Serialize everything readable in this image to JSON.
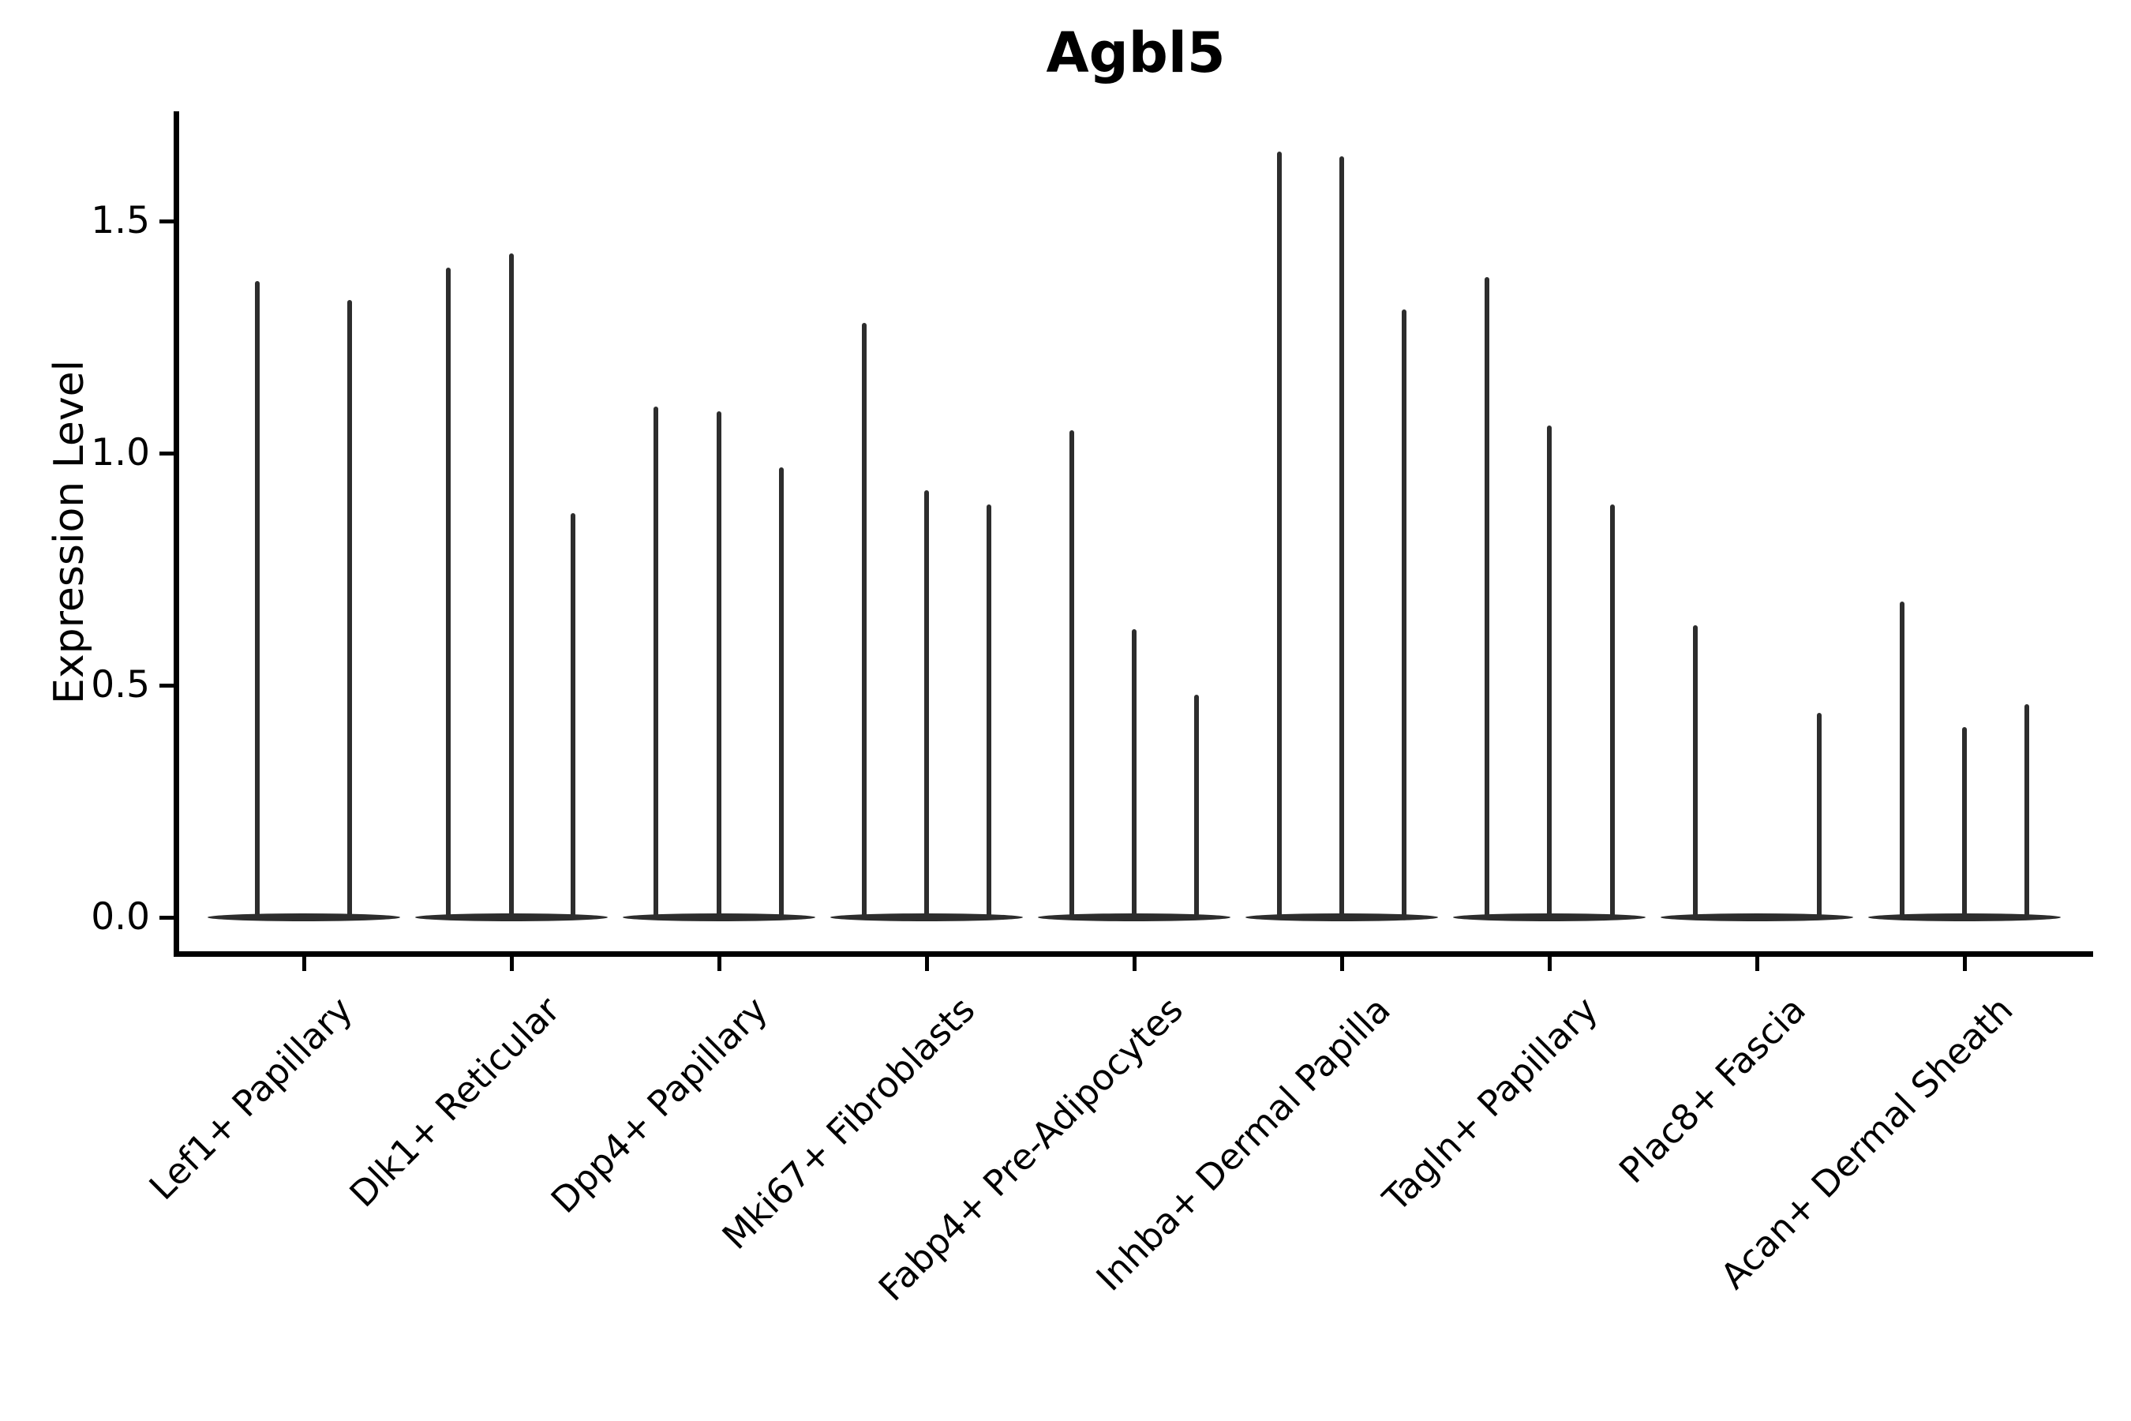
{
  "colors": {
    "violin": "#2d2d2d",
    "axis": "#000000",
    "background": "#ffffff"
  },
  "chart_data": {
    "type": "violin",
    "title": "Agbl5",
    "ylabel": "Expression Level",
    "xlabel": "",
    "legend": "none",
    "grid": false,
    "ylim": [
      0,
      1.74
    ],
    "y_ticks": [
      {
        "label": "1.5",
        "value": 1.5
      },
      {
        "label": "1.0",
        "value": 1.0
      },
      {
        "label": "0.5",
        "value": 0.5
      },
      {
        "label": "0.0",
        "value": 0.0
      }
    ],
    "categories": [
      "Lef1+ Papillary",
      "Dlk1+ Reticular",
      "Dpp4+ Papillary",
      "Mki67+ Fibroblasts",
      "Fabp4+ Pre-Adipocytes",
      "Inhba+ Dermal Papilla",
      "Tagln+ Papillary",
      "Plac8+ Fascia",
      "Acan+ Dermal Sheath"
    ],
    "groups": [
      {
        "category": "Lef1+ Papillary",
        "spikes": [
          {
            "dx": -59,
            "value": 1.37
          },
          {
            "dx": 58,
            "value": 1.33
          }
        ]
      },
      {
        "category": "Dlk1+ Reticular",
        "spikes": [
          {
            "dx": -80,
            "value": 1.4
          },
          {
            "dx": 0,
            "value": 1.43
          },
          {
            "dx": 78,
            "value": 0.87
          }
        ]
      },
      {
        "category": "Dpp4+ Papillary",
        "spikes": [
          {
            "dx": -80,
            "value": 1.1
          },
          {
            "dx": 0,
            "value": 1.09
          },
          {
            "dx": 79,
            "value": 0.97
          }
        ]
      },
      {
        "category": "Mki67+ Fibroblasts",
        "spikes": [
          {
            "dx": -79,
            "value": 1.28
          },
          {
            "dx": 0,
            "value": 0.92
          },
          {
            "dx": 79,
            "value": 0.89
          }
        ]
      },
      {
        "category": "Fabp4+ Pre-Adipocytes",
        "spikes": [
          {
            "dx": -79,
            "value": 1.05
          },
          {
            "dx": 0,
            "value": 0.62
          },
          {
            "dx": 79,
            "value": 0.48
          }
        ]
      },
      {
        "category": "Inhba+ Dermal Papilla",
        "spikes": [
          {
            "dx": -79,
            "value": 1.65
          },
          {
            "dx": 0,
            "value": 1.64
          },
          {
            "dx": 79,
            "value": 1.31
          }
        ]
      },
      {
        "category": "Tagln+ Papillary",
        "spikes": [
          {
            "dx": -79,
            "value": 1.38
          },
          {
            "dx": 0,
            "value": 1.06
          },
          {
            "dx": 80,
            "value": 0.89
          }
        ]
      },
      {
        "category": "Plac8+ Fascia",
        "spikes": [
          {
            "dx": -78,
            "value": 0.63
          },
          {
            "dx": 79,
            "value": 0.44
          }
        ]
      },
      {
        "category": "Acan+ Dermal Sheath",
        "spikes": [
          {
            "dx": -79,
            "value": 0.68
          },
          {
            "dx": 0,
            "value": 0.41
          },
          {
            "dx": 79,
            "value": 0.46
          }
        ]
      }
    ]
  }
}
